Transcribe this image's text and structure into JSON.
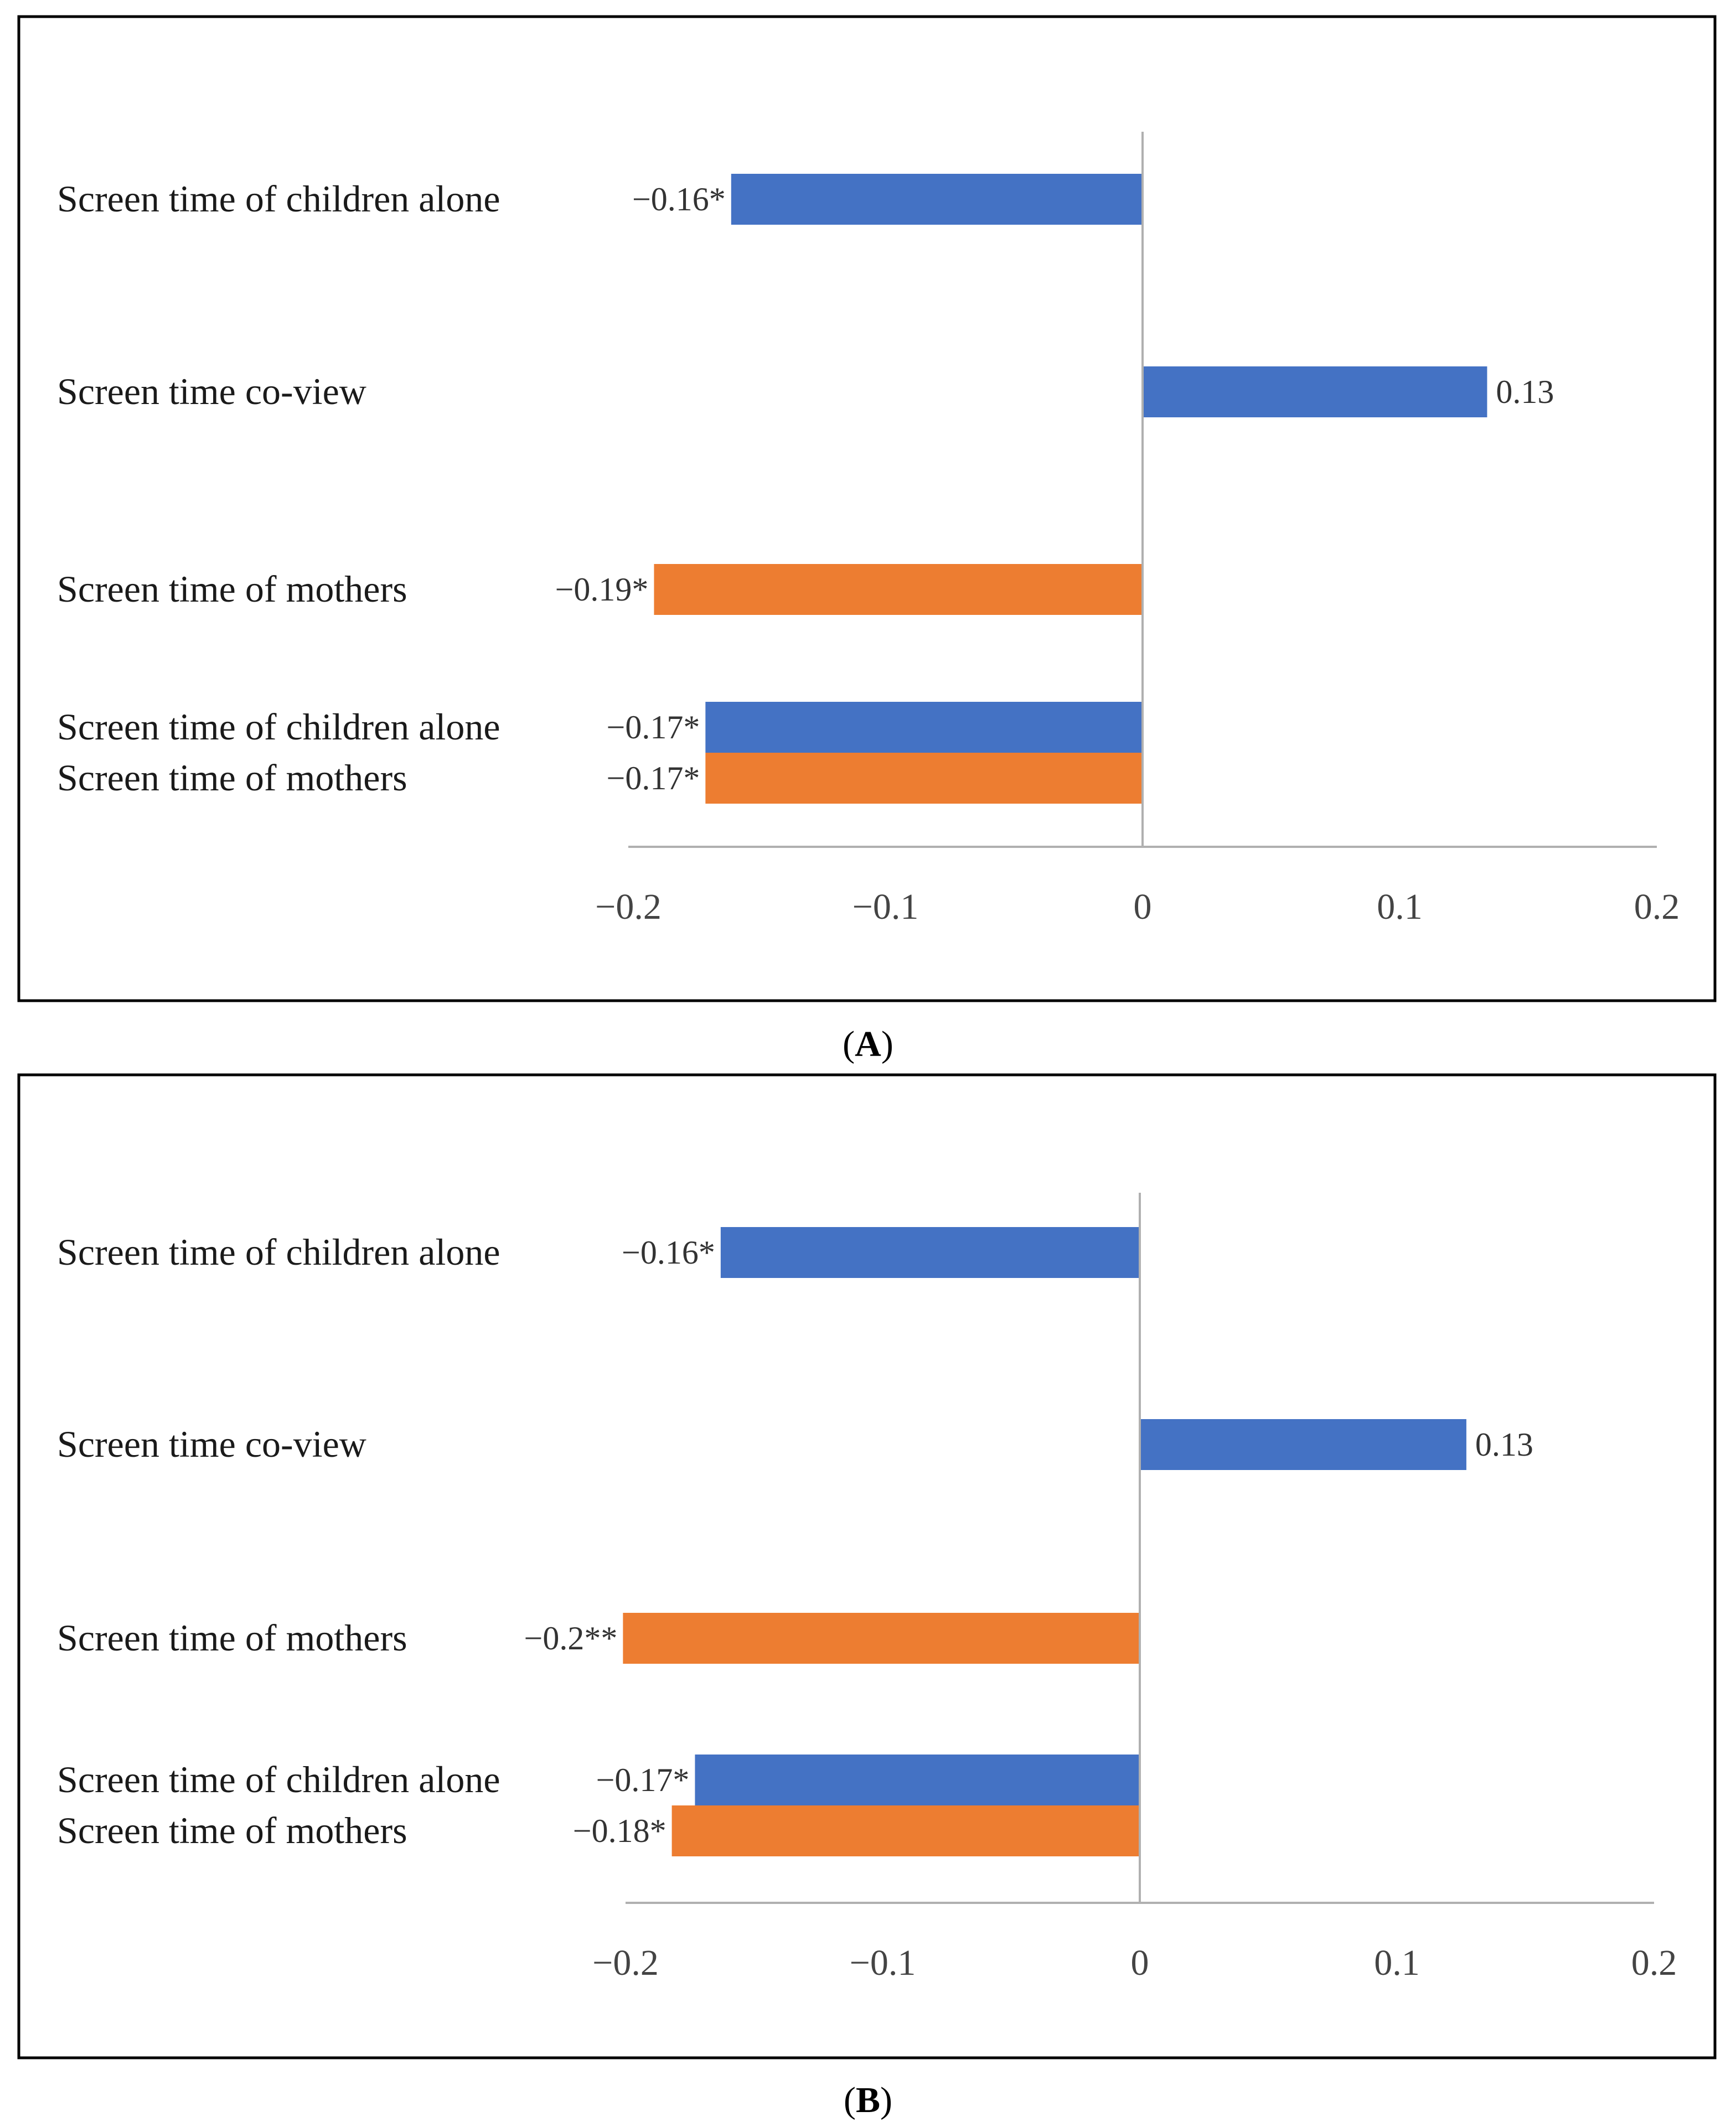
{
  "colors": {
    "children_alone": "#4472C4",
    "mothers": "#ED7D31",
    "axis": "#B0B0B0",
    "frame": "#000000"
  },
  "chart_data": [
    {
      "type": "bar",
      "orientation": "horizontal",
      "panel": "A",
      "xlim": [
        -0.2,
        0.2
      ],
      "ticks": [
        -0.2,
        -0.1,
        0,
        0.1,
        0.2
      ],
      "tick_labels": [
        "−0.2",
        "−0.1",
        "0",
        "0.1",
        "0.2"
      ],
      "bars": [
        {
          "label": "Screen time of children alone",
          "value": -0.16,
          "value_label": "−0.16*",
          "series": "children_alone",
          "group": 0
        },
        {
          "label": "Screen time co-view",
          "value": 0.134,
          "value_label": "0.13",
          "series": "children_alone",
          "group": 1
        },
        {
          "label": "Screen time of mothers",
          "value": -0.19,
          "value_label": "−0.19*",
          "series": "mothers",
          "group": 2
        },
        {
          "label": "Screen time of children alone",
          "value": -0.17,
          "value_label": "−0.17*",
          "series": "children_alone",
          "group": 3
        },
        {
          "label": "Screen time of mothers",
          "value": -0.17,
          "value_label": "−0.17*",
          "series": "mothers",
          "group": 3
        }
      ]
    },
    {
      "type": "bar",
      "orientation": "horizontal",
      "panel": "B",
      "xlim": [
        -0.2,
        0.2
      ],
      "ticks": [
        -0.2,
        -0.1,
        0,
        0.1,
        0.2
      ],
      "tick_labels": [
        "−0.2",
        "−0.1",
        "0",
        "0.1",
        "0.2"
      ],
      "bars": [
        {
          "label": "Screen time of children alone",
          "value": -0.163,
          "value_label": "−0.16*",
          "series": "children_alone",
          "group": 0
        },
        {
          "label": "Screen time co-view",
          "value": 0.127,
          "value_label": "0.13",
          "series": "children_alone",
          "group": 1
        },
        {
          "label": "Screen time of mothers",
          "value": -0.201,
          "value_label": "−0.2**",
          "series": "mothers",
          "group": 2
        },
        {
          "label": "Screen time of children alone",
          "value": -0.173,
          "value_label": "−0.17*",
          "series": "children_alone",
          "group": 3
        },
        {
          "label": "Screen time of mothers",
          "value": -0.182,
          "value_label": "−0.18*",
          "series": "mothers",
          "group": 3
        }
      ]
    }
  ],
  "panels": [
    {
      "label_open": "(",
      "label_letter": "A",
      "label_close": ")"
    },
    {
      "label_open": "(",
      "label_letter": "B",
      "label_close": ")"
    }
  ]
}
